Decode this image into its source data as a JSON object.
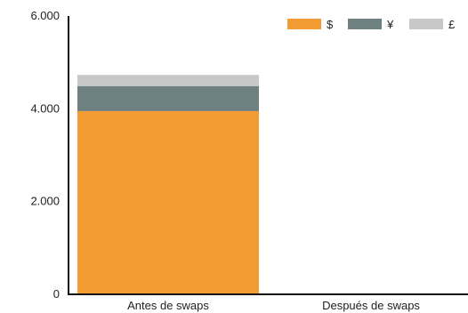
{
  "chart_data": {
    "type": "bar",
    "stacked": true,
    "categories": [
      "Antes de swaps",
      "Después de swaps"
    ],
    "series": [
      {
        "name": "$",
        "color": "#F39C34",
        "values": [
          3950,
          0
        ]
      },
      {
        "name": "¥",
        "color": "#6E8080",
        "values": [
          540,
          0
        ]
      },
      {
        "name": "£",
        "color": "#C8C8C8",
        "values": [
          240,
          0
        ]
      }
    ],
    "yticks": [
      0,
      2000,
      4000,
      6000
    ],
    "ytick_labels": [
      "0",
      "2.000",
      "4.000",
      "6.000"
    ],
    "ylim": [
      0,
      6000
    ],
    "title": "",
    "xlabel": "",
    "ylabel": "",
    "legend_position": "top-right",
    "grid": false,
    "colors": {
      "axis": "#111111",
      "text": "#222222"
    }
  }
}
